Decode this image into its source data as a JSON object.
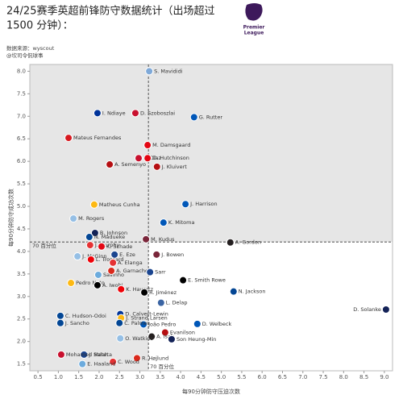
{
  "chart_data": {
    "type": "scatter",
    "title_lines": [
      "24/25赛季英超前锋防守数据统计（出场超过",
      "1500 分钟）："
    ],
    "source": "数据来源：wyscout",
    "author": "@坎司令侃球事",
    "logo_lines": [
      "Premier",
      "League"
    ],
    "xlabel": "每90分钟防守压迫次数",
    "ylabel": "每90分钟防守成功次数",
    "xlim": [
      0.3,
      9.2
    ],
    "ylim": [
      1.35,
      8.15
    ],
    "xticks": [
      0.5,
      {
        "value": 1,
        "label": "1.0"
      },
      1.5,
      {
        "value": 2,
        "label": "2.0"
      },
      2.5,
      {
        "value": 3,
        "label": "3.0"
      },
      3.5,
      {
        "value": 4,
        "label": "4.0"
      },
      4.5,
      {
        "value": 5,
        "label": "5.0"
      },
      5.5,
      {
        "value": 6,
        "label": "6.0"
      },
      6.5,
      {
        "value": 7,
        "label": "7.0"
      },
      7.5,
      {
        "value": 8,
        "label": "8.0"
      },
      8.5,
      {
        "value": 9,
        "label": "9.0"
      }
    ],
    "yticks": [
      1.5,
      {
        "value": 2,
        "label": "2.0"
      },
      2.5,
      {
        "value": 3,
        "label": "3.0"
      },
      3.5,
      {
        "value": 4,
        "label": "4.0"
      },
      4.5,
      {
        "value": 5,
        "label": "5.0"
      },
      5.5,
      {
        "value": 6,
        "label": "6.0"
      },
      6.5,
      {
        "value": 7,
        "label": "7.0"
      },
      7.5,
      {
        "value": 8,
        "label": "8.0"
      }
    ],
    "vline": {
      "value": 3.21,
      "label": "70 百分位"
    },
    "hline": {
      "value": 4.21,
      "label": "70 百分位"
    },
    "labels": [
      "S. Mavididi",
      "D. Szoboszlai",
      "G. Rutter",
      "I. Ndiaye",
      "Mateus Fernandes",
      "M. Damsgaard",
      "L. Díaz",
      "D. Hutchinson",
      "J. Kluivert",
      "A. Semenyo",
      "J. Harrison",
      "Matheus Cunha",
      "M. Rogers",
      "K. Mitoma",
      "B. Johnson",
      "N. Madueke",
      "M. Kudus",
      "A. Gordon",
      "J. Murphy",
      "K. Schade",
      "J. McGinn",
      "E. Eze",
      "J. Bowen",
      "L. Trossard",
      "A. Elanga",
      "Savinho",
      "A. Garnacho",
      "Sarr",
      "E. Smith Rowe",
      "Pedro Neto",
      "A. Iwobi",
      "N. Jackson",
      "K. Havertz",
      "R. Jiménez",
      "L. Delap",
      "C. Hudson-Odoi",
      "D. Solanke",
      "D. Calvert-Lewin",
      "J. Strand Larsen",
      "J. Sancho",
      "D. Welbeck",
      "João Pedro",
      "C. Palmer",
      "Evanilson",
      "A. Isak",
      "Son Heung-Min",
      "O. Watkins",
      "J. Mateta",
      "Mohamed Salah",
      "R. Højlund",
      "C. Wood",
      "E. Haaland"
    ],
    "x": [
      3.23,
      2.89,
      4.33,
      1.96,
      1.25,
      3.19,
      2.97,
      3.19,
      3.42,
      2.26,
      4.12,
      1.88,
      1.37,
      3.58,
      1.9,
      1.76,
      3.15,
      5.22,
      1.78,
      2.06,
      1.47,
      2.38,
      3.41,
      1.8,
      2.34,
      1.98,
      2.3,
      3.25,
      4.06,
      1.31,
      1.96,
      5.3,
      2.54,
      3.11,
      3.52,
      1.05,
      9.04,
      2.52,
      2.54,
      1.05,
      4.41,
      3.09,
      2.5,
      3.62,
      3.29,
      3.78,
      2.52,
      1.63,
      1.07,
      2.93,
      2.34,
      1.59
    ],
    "values": [
      8.0,
      7.07,
      6.98,
      7.07,
      6.52,
      6.36,
      6.07,
      6.07,
      5.88,
      5.93,
      5.05,
      5.04,
      4.73,
      4.64,
      4.41,
      4.32,
      4.27,
      4.2,
      4.14,
      4.11,
      3.89,
      3.93,
      3.93,
      3.82,
      3.75,
      3.48,
      3.57,
      3.54,
      3.36,
      3.3,
      3.25,
      3.11,
      3.16,
      3.09,
      2.86,
      2.57,
      2.71,
      2.61,
      2.52,
      2.41,
      2.39,
      2.38,
      2.41,
      2.2,
      2.11,
      2.05,
      2.07,
      1.71,
      1.71,
      1.63,
      1.55,
      1.5
    ],
    "colors": [
      "#7fa9d8",
      "#c8102e",
      "#0057b8",
      "#003399",
      "#d71920",
      "#e30613",
      "#c8102e",
      "#e30613",
      "#b50e12",
      "#b50e12",
      "#0057b8",
      "#fdb913",
      "#95bfe5",
      "#0057b8",
      "#132257",
      "#034694",
      "#7a263a",
      "#241f20",
      "#e53233",
      "#e30613",
      "#95bfe5",
      "#1b458f",
      "#7a263a",
      "#ef0107",
      "#e53233",
      "#6cabdd",
      "#da291c",
      "#1b458f",
      "#000000",
      "#fdb913",
      "#000000",
      "#034694",
      "#ef0107",
      "#000000",
      "#3a64a3",
      "#034694",
      "#132257",
      "#003399",
      "#fdb913",
      "#034694",
      "#0057b8",
      "#0057b8",
      "#034694",
      "#b50e12",
      "#241f20",
      "#132257",
      "#95bfe5",
      "#1b458f",
      "#c8102e",
      "#da291c",
      "#e53233",
      "#6cabdd"
    ]
  }
}
